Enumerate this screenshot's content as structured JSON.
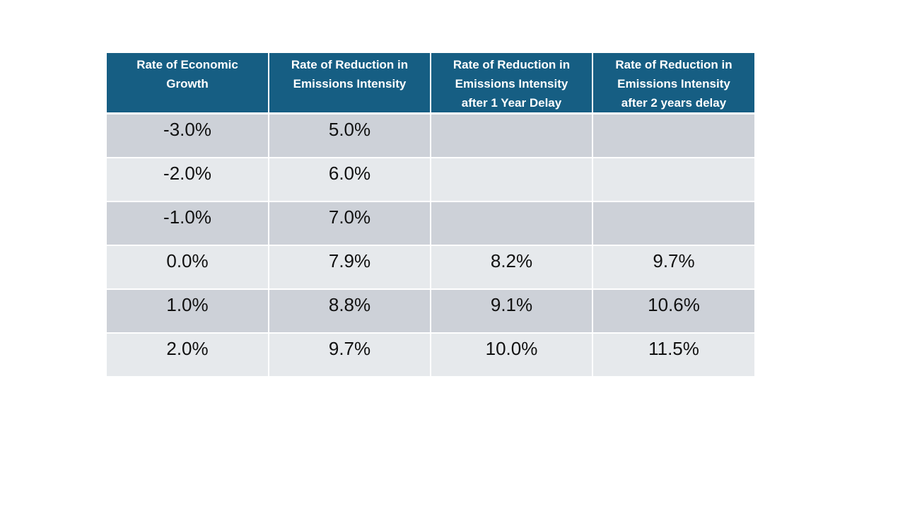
{
  "table": {
    "headers": [
      "Rate of Economic Growth",
      "Rate of Reduction in Emissions Intensity",
      "Rate of Reduction in Emissions Intensity after 1 Year Delay",
      "Rate of Reduction in Emissions Intensity after 2 years delay"
    ],
    "rows": [
      [
        "-3.0%",
        "5.0%",
        "",
        ""
      ],
      [
        "-2.0%",
        "6.0%",
        "",
        ""
      ],
      [
        "-1.0%",
        "7.0%",
        "",
        ""
      ],
      [
        "0.0%",
        "7.9%",
        "8.2%",
        "9.7%"
      ],
      [
        "1.0%",
        "8.8%",
        "9.1%",
        "10.6%"
      ],
      [
        "2.0%",
        "9.7%",
        "10.0%",
        "11.5%"
      ]
    ]
  },
  "colors": {
    "header_background": "#165e83",
    "header_text": "#ffffff",
    "row_dark": "#cdd1d8",
    "row_light": "#e6e9ec"
  }
}
